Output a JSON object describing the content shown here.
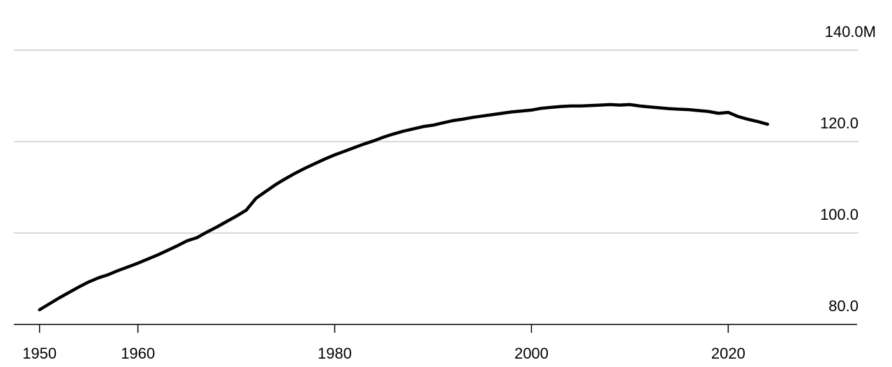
{
  "chart_data": {
    "type": "line",
    "x": [
      1950,
      1951,
      1952,
      1953,
      1954,
      1955,
      1956,
      1957,
      1958,
      1959,
      1960,
      1961,
      1962,
      1963,
      1964,
      1965,
      1966,
      1967,
      1968,
      1969,
      1970,
      1971,
      1972,
      1973,
      1974,
      1975,
      1976,
      1977,
      1978,
      1979,
      1980,
      1981,
      1982,
      1983,
      1984,
      1985,
      1986,
      1987,
      1988,
      1989,
      1990,
      1991,
      1992,
      1993,
      1994,
      1995,
      1996,
      1997,
      1998,
      1999,
      2000,
      2001,
      2002,
      2003,
      2004,
      2005,
      2006,
      2007,
      2008,
      2009,
      2010,
      2011,
      2012,
      2013,
      2014,
      2015,
      2016,
      2017,
      2018,
      2019,
      2020,
      2021,
      2022,
      2023,
      2024
    ],
    "series": [
      {
        "color": "#000000",
        "values": [
          83.2,
          84.5,
          85.8,
          87.0,
          88.2,
          89.3,
          90.2,
          90.9,
          91.8,
          92.6,
          93.4,
          94.3,
          95.2,
          96.2,
          97.2,
          98.3,
          99.0,
          100.2,
          101.3,
          102.5,
          103.7,
          105.0,
          107.6,
          109.1,
          110.6,
          111.9,
          113.1,
          114.2,
          115.2,
          116.2,
          117.1,
          117.9,
          118.7,
          119.5,
          120.2,
          121.0,
          121.7,
          122.3,
          122.8,
          123.3,
          123.6,
          124.1,
          124.6,
          124.9,
          125.3,
          125.6,
          125.9,
          126.2,
          126.5,
          126.7,
          126.9,
          127.3,
          127.5,
          127.7,
          127.8,
          127.8,
          127.9,
          128.0,
          128.1,
          128.0,
          128.1,
          127.8,
          127.6,
          127.4,
          127.2,
          127.1,
          127.0,
          126.8,
          126.6,
          126.2,
          126.4,
          125.5,
          124.9,
          124.4,
          123.8
        ]
      }
    ],
    "xlim": [
      1947.4,
      2033.1
    ],
    "xticks": [
      1950,
      1960,
      1980,
      2000,
      2020
    ],
    "ylim": [
      80,
      140
    ],
    "yticks": [
      {
        "value": 80,
        "label": "80.0"
      },
      {
        "value": 100,
        "label": "100.0"
      },
      {
        "value": 120,
        "label": "120.0"
      },
      {
        "value": 140,
        "label": "140.0M"
      }
    ],
    "grid": true
  }
}
